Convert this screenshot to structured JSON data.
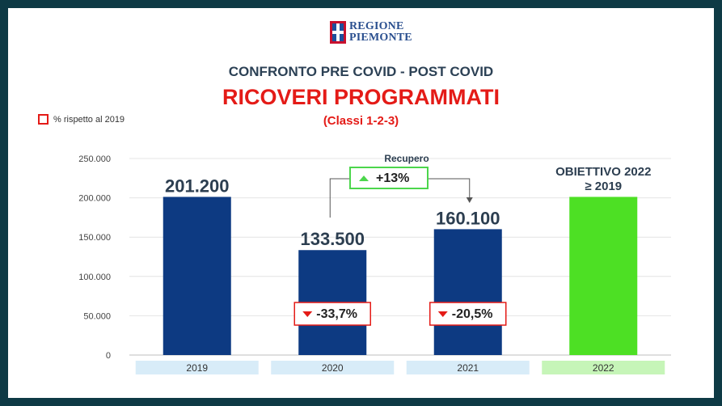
{
  "logo": {
    "line1": "REGIONE",
    "line2": "PIEMONTE"
  },
  "header": {
    "supertitle": "CONFRONTO PRE COVID - POST COVID",
    "title": "RICOVERI PROGRAMMATI",
    "subtitle": "(Classi 1-2-3)"
  },
  "legend": {
    "label": "% rispetto al 2019",
    "color": "#e41b17"
  },
  "recovery": {
    "label": "Recupero",
    "value": "+13%",
    "color": "#4cd64c"
  },
  "goal": {
    "line1": "OBIETTIVO 2022",
    "line2": "≥ 2019"
  },
  "chart_data": {
    "type": "bar",
    "categories": [
      "2019",
      "2020",
      "2021",
      "2022"
    ],
    "values": [
      201200,
      133500,
      160100,
      201200
    ],
    "value_labels": [
      "201.200",
      "133.500",
      "160.100",
      ""
    ],
    "pct_labels": [
      "",
      "-33,7%",
      "-20,5%",
      ""
    ],
    "bar_colors": [
      "#0d3a82",
      "#0d3a82",
      "#0d3a82",
      "#4de024"
    ],
    "category_bg": [
      "#d8ecf8",
      "#d8ecf8",
      "#d8ecf8",
      "#c6f5b8"
    ],
    "yticks": [
      "0",
      "50.000",
      "100.000",
      "150.000",
      "200.000",
      "250.000"
    ],
    "ylim": [
      0,
      250000
    ],
    "grid": true
  }
}
